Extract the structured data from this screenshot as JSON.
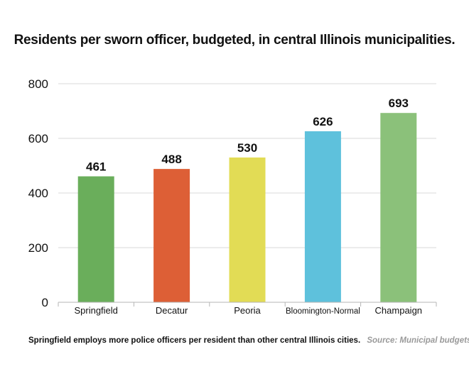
{
  "chart_data": {
    "type": "bar",
    "title": "Residents per sworn officer, budgeted, in central Illinois municipalities.",
    "categories": [
      "Springfield",
      "Decatur",
      "Peoria",
      "Bloomington-Normal",
      "Champaign"
    ],
    "values": [
      461,
      488,
      530,
      626,
      693
    ],
    "colors": [
      "#6aae5b",
      "#dd5f36",
      "#e2dc55",
      "#5ec1dc",
      "#8bc17a"
    ],
    "ylim": [
      0,
      800
    ],
    "yticks": [
      0,
      200,
      400,
      600,
      800
    ],
    "grid": true,
    "xlabel": "",
    "ylabel": ""
  },
  "footer": {
    "note": "Springfield employs more police officers per resident than other central Illinois cities.",
    "source": "Source: Municipal budgets"
  }
}
